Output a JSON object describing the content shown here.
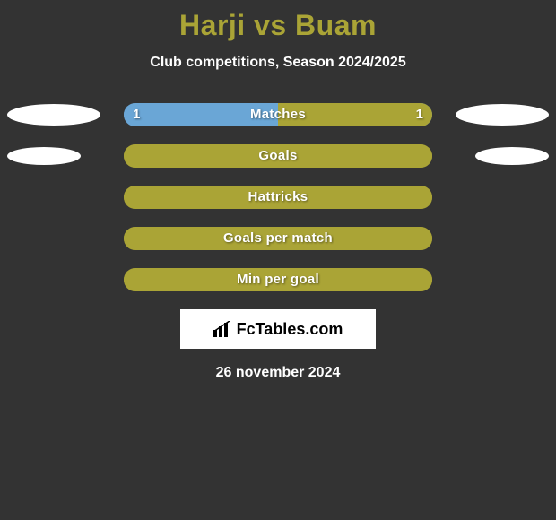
{
  "title_left": "Harji",
  "title_sep": "vs",
  "title_right": "Buam",
  "subtitle": "Club competitions, Season 2024/2025",
  "date": "26 november 2024",
  "logo_text": "FcTables.com",
  "colors": {
    "page_bg": "#333333",
    "title_color": "#aaa436",
    "text_white": "#ffffff",
    "bar_olive": "#aaa436",
    "bar_blue": "#6aa6d6",
    "ellipse_left": "#ffffff",
    "ellipse_right": "#ffffff"
  },
  "stats": [
    {
      "label": "Matches",
      "left_value": "1",
      "right_value": "1",
      "left_fill_pct": 50,
      "right_fill_pct": 50,
      "left_fill_color": "#6aa6d6",
      "right_fill_color": "#aaa436",
      "show_ellipses": true,
      "show_values": true,
      "ellipse_left_bg": "#ffffff",
      "ellipse_right_bg": "#ffffff",
      "ellipse_width": 104,
      "ellipse_height": 24
    },
    {
      "label": "Goals",
      "left_value": "",
      "right_value": "",
      "left_fill_pct": 100,
      "right_fill_pct": 0,
      "left_fill_color": "#aaa436",
      "right_fill_color": "#aaa436",
      "show_ellipses": true,
      "show_values": false,
      "ellipse_left_bg": "#ffffff",
      "ellipse_right_bg": "#ffffff",
      "ellipse_width": 82,
      "ellipse_height": 20
    },
    {
      "label": "Hattricks",
      "left_value": "",
      "right_value": "",
      "left_fill_pct": 100,
      "right_fill_pct": 0,
      "left_fill_color": "#aaa436",
      "right_fill_color": "#aaa436",
      "show_ellipses": false,
      "show_values": false
    },
    {
      "label": "Goals per match",
      "left_value": "",
      "right_value": "",
      "left_fill_pct": 100,
      "right_fill_pct": 0,
      "left_fill_color": "#aaa436",
      "right_fill_color": "#aaa436",
      "show_ellipses": false,
      "show_values": false
    },
    {
      "label": "Min per goal",
      "left_value": "",
      "right_value": "",
      "left_fill_pct": 100,
      "right_fill_pct": 0,
      "left_fill_color": "#aaa436",
      "right_fill_color": "#aaa436",
      "show_ellipses": false,
      "show_values": false
    }
  ]
}
